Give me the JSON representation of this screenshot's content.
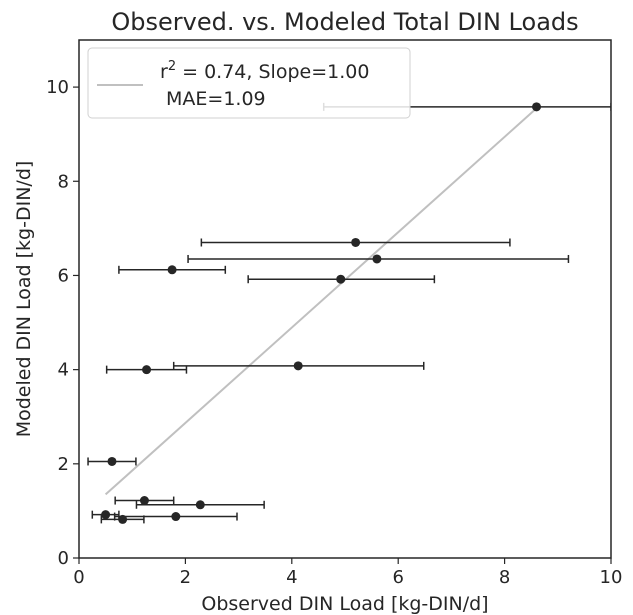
{
  "chart_data": {
    "type": "scatter",
    "title": "Observed. vs. Modeled Total DIN Loads",
    "xlabel": "Observed DIN Load [kg-DIN/d]",
    "ylabel": "Modeled  DIN Load [kg-DIN/d]",
    "xlim": [
      0,
      10
    ],
    "ylim": [
      0,
      11
    ],
    "xticks": [
      0,
      2,
      4,
      6,
      8,
      10
    ],
    "yticks": [
      0,
      2,
      4,
      6,
      8,
      10
    ],
    "grid": false,
    "legend": {
      "placement": "top-left",
      "line1_prefix": "r",
      "line1_sup": "2",
      "line1_rest": " = 0.74, Slope=1.00",
      "line2": "MAE=1.09"
    },
    "fit_line": {
      "x": [
        0.5,
        8.6
      ],
      "y": [
        1.35,
        9.55
      ],
      "color": "#c0c0c0"
    },
    "marker_color": "#262626",
    "points": [
      {
        "x": 8.6,
        "y": 9.58,
        "xerr_low": 4.6,
        "xerr_high": 10.0
      },
      {
        "x": 5.2,
        "y": 6.7,
        "xerr_low": 2.3,
        "xerr_high": 8.1
      },
      {
        "x": 5.6,
        "y": 6.35,
        "xerr_low": 2.05,
        "xerr_high": 9.2
      },
      {
        "x": 1.75,
        "y": 6.12,
        "xerr_low": 0.75,
        "xerr_high": 2.75
      },
      {
        "x": 4.92,
        "y": 5.92,
        "xerr_low": 3.18,
        "xerr_high": 6.68
      },
      {
        "x": 4.12,
        "y": 4.08,
        "xerr_low": 1.78,
        "xerr_high": 6.48
      },
      {
        "x": 1.27,
        "y": 4.0,
        "xerr_low": 0.52,
        "xerr_high": 2.02
      },
      {
        "x": 0.62,
        "y": 2.05,
        "xerr_low": 0.17,
        "xerr_high": 1.07
      },
      {
        "x": 1.23,
        "y": 1.22,
        "xerr_low": 0.68,
        "xerr_high": 1.78
      },
      {
        "x": 2.28,
        "y": 1.13,
        "xerr_low": 1.08,
        "xerr_high": 3.48
      },
      {
        "x": 0.5,
        "y": 0.92,
        "xerr_low": 0.25,
        "xerr_high": 0.75
      },
      {
        "x": 1.82,
        "y": 0.88,
        "xerr_low": 0.67,
        "xerr_high": 2.97
      },
      {
        "x": 0.82,
        "y": 0.82,
        "xerr_low": 0.42,
        "xerr_high": 1.22
      }
    ]
  }
}
